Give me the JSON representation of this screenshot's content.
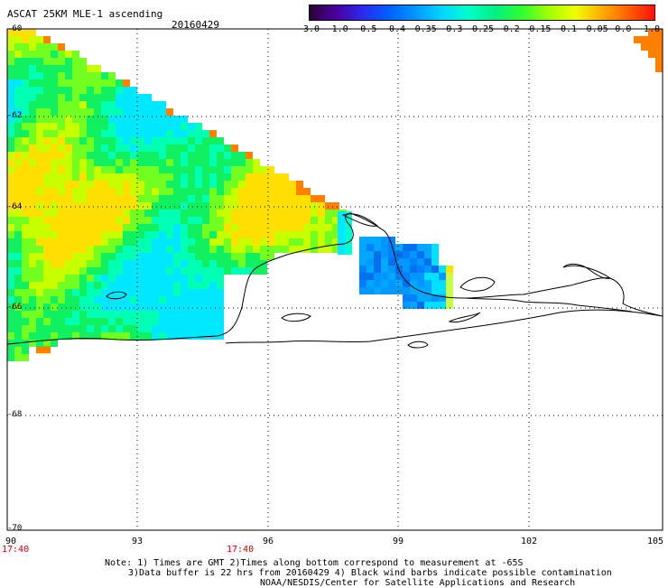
{
  "header": {
    "title": "ASCAT 25KM MLE-1 ascending",
    "date": "20160429"
  },
  "colorbar": {
    "labels": [
      "-3.0",
      "-1.0",
      "-0.5",
      "-0.4",
      "-0.35",
      "-0.3",
      "-0.25",
      "-0.2",
      "-0.15",
      "-0.1",
      "-0.05",
      "0.0",
      "1.0"
    ],
    "colors": [
      "#2a0038",
      "#4a00a0",
      "#2a2af0",
      "#0060ff",
      "#0098ff",
      "#00d8ff",
      "#00ffc8",
      "#00f080",
      "#30ff30",
      "#a0ff00",
      "#f0ff00",
      "#ffb000",
      "#ff6000",
      "#ff1010"
    ]
  },
  "axes": {
    "lat_labels": [
      "-60",
      "-62",
      "-64",
      "-66",
      "-68",
      "-70"
    ],
    "lon_labels": [
      "90",
      "93",
      "96",
      "99",
      "102",
      "105"
    ],
    "time_labels": [
      "17:40",
      "17:40"
    ]
  },
  "footer": {
    "line1": "Note: 1) Times are GMT 2)Times along bottom correspond to measurement at -65S",
    "line2": "3)Data buffer is 22 hrs from 20160429 4) Black wind barbs indicate possible contamination",
    "line3": "NOAA/NESDIS/Center for Satellite Applications and Research"
  },
  "legend_colors": {
    "land_outline": "#000000",
    "grid": "#000000",
    "time_label": "#cc0000"
  }
}
